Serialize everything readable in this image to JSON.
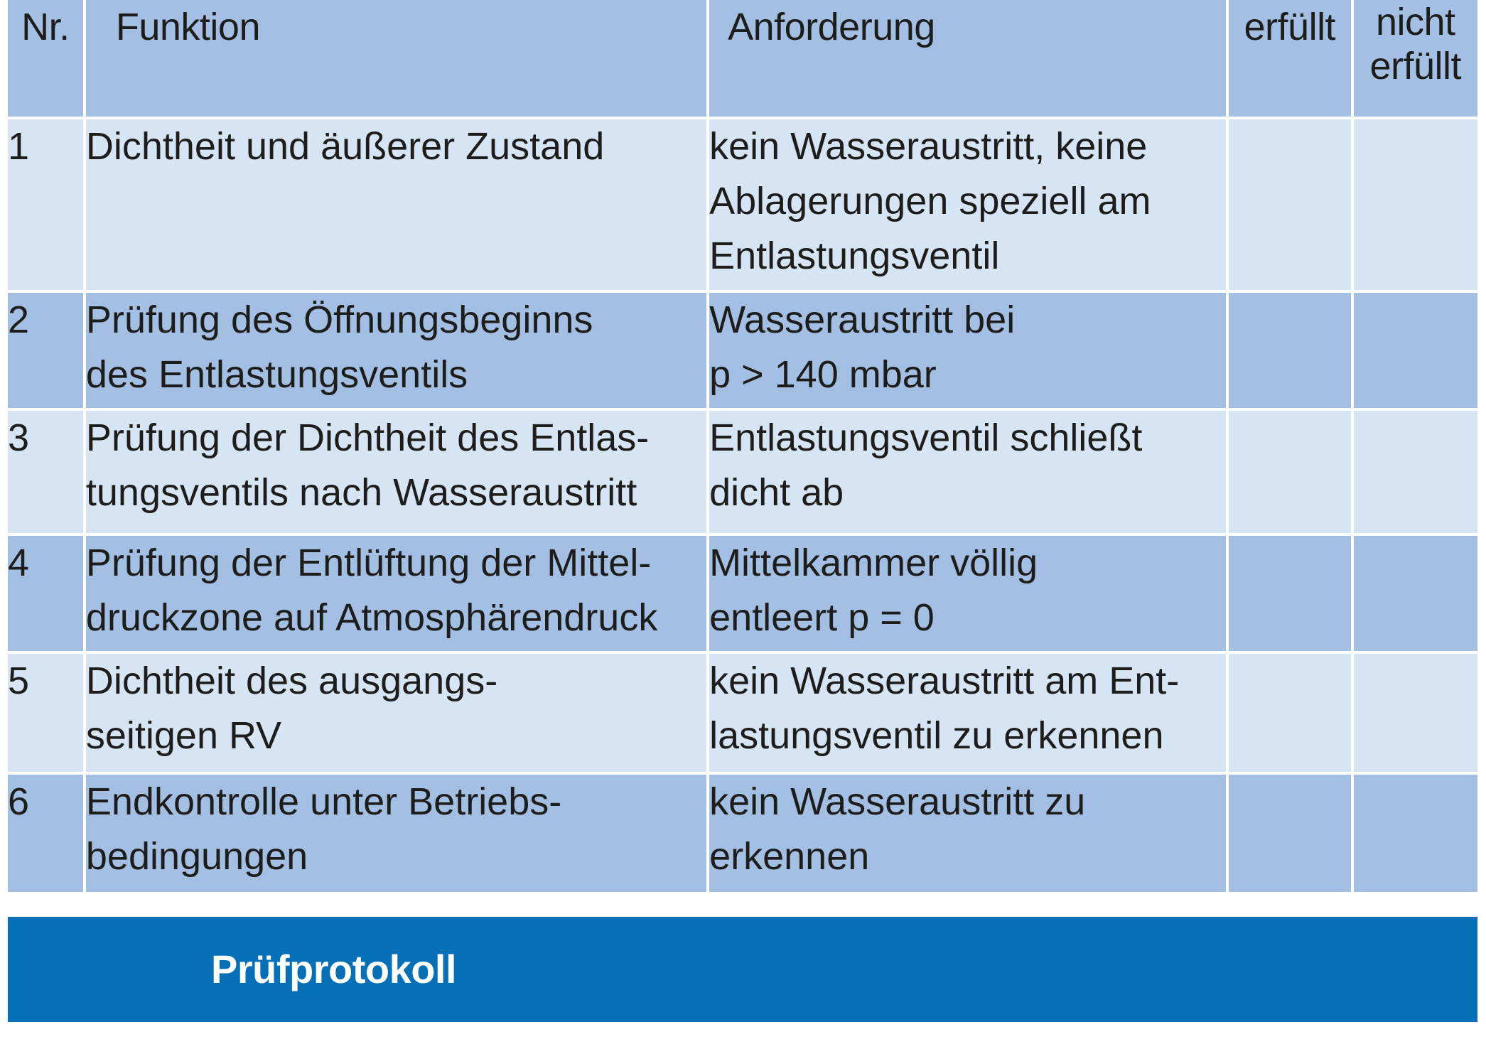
{
  "header": {
    "nr": "Nr.",
    "funktion": "Funktion",
    "anforderung": "Anforderung",
    "erfuellt": "erfüllt",
    "nicht_erfuellt_line1": "nicht",
    "nicht_erfuellt_line2": "erfüllt"
  },
  "rows": [
    {
      "nr": "1",
      "funktion": [
        "Dichtheit und äußerer Zustand"
      ],
      "anforderung": [
        "kein Wasseraustritt, keine",
        "Ablagerungen speziell am",
        "Entlastungsventil"
      ]
    },
    {
      "nr": "2",
      "funktion": [
        "Prüfung des Öffnungsbeginns",
        "des Entlastungsventils"
      ],
      "anforderung": [
        "Wasseraustritt bei",
        "p > 140 mbar"
      ]
    },
    {
      "nr": "3",
      "funktion": [
        "Prüfung der Dichtheit des Entlas-",
        "tungsventils nach Wasseraustritt"
      ],
      "anforderung": [
        "Entlastungsventil schließt",
        "dicht ab"
      ]
    },
    {
      "nr": "4",
      "funktion": [
        "Prüfung der Entlüftung der Mittel-",
        "druckzone auf Atmosphärendruck"
      ],
      "anforderung": [
        "Mittelkammer völlig",
        "entleert p = 0"
      ]
    },
    {
      "nr": "5",
      "funktion": [
        "Dichtheit des ausgangs-",
        "seitigen RV"
      ],
      "anforderung": [
        "kein Wasseraustritt am Ent-",
        "lastungsventil zu erkennen"
      ]
    },
    {
      "nr": "6",
      "funktion": [
        "Endkontrolle unter Betriebs-",
        "bedingungen"
      ],
      "anforderung": [
        "kein Wasseraustritt zu",
        "erkennen"
      ]
    }
  ],
  "footer": {
    "title": "Prüfprotokoll"
  },
  "colors": {
    "row_dark": "#a3bfe3",
    "row_light": "#d6e4f4",
    "footer_bar": "#0570b8"
  }
}
